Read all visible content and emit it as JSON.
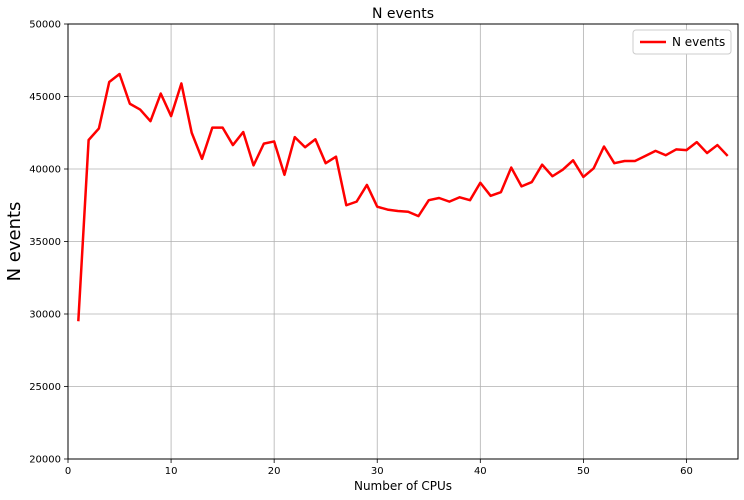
{
  "chart_data": {
    "type": "line",
    "title": "N events",
    "xlabel": "Number of CPUs",
    "ylabel": "N events",
    "xlim": [
      0,
      65
    ],
    "ylim": [
      20000,
      50000
    ],
    "xticks": [
      0,
      10,
      20,
      30,
      40,
      50,
      60
    ],
    "yticks": [
      20000,
      25000,
      30000,
      35000,
      40000,
      45000,
      50000
    ],
    "grid": true,
    "legend_position": "top-right",
    "series": [
      {
        "name": "N events",
        "color": "#ff0000",
        "x": [
          1,
          2,
          3,
          4,
          5,
          6,
          7,
          8,
          9,
          10,
          11,
          12,
          13,
          14,
          15,
          16,
          17,
          18,
          19,
          20,
          21,
          22,
          23,
          24,
          25,
          26,
          27,
          28,
          29,
          30,
          31,
          32,
          33,
          34,
          35,
          36,
          37,
          38,
          39,
          40,
          41,
          42,
          43,
          44,
          45,
          46,
          47,
          48,
          49,
          50,
          51,
          52,
          53,
          54,
          55,
          56,
          57,
          58,
          59,
          60,
          61,
          62,
          63,
          64
        ],
        "y": [
          29500,
          42000,
          42800,
          46000,
          46550,
          44500,
          44100,
          43300,
          45200,
          43650,
          45900,
          42500,
          40700,
          42850,
          42850,
          41650,
          42550,
          40250,
          41750,
          41900,
          39600,
          42200,
          41500,
          42050,
          40400,
          40850,
          37500,
          37750,
          38900,
          37400,
          37200,
          37100,
          37050,
          36750,
          37850,
          38000,
          37750,
          38050,
          37850,
          39050,
          38150,
          38400,
          40100,
          38800,
          39100,
          40300,
          39500,
          39950,
          40600,
          39450,
          40050,
          41550,
          40400,
          40550,
          40550,
          40900,
          41250,
          40950,
          41350,
          41300,
          41850,
          41100,
          41650,
          40900
        ]
      }
    ]
  }
}
